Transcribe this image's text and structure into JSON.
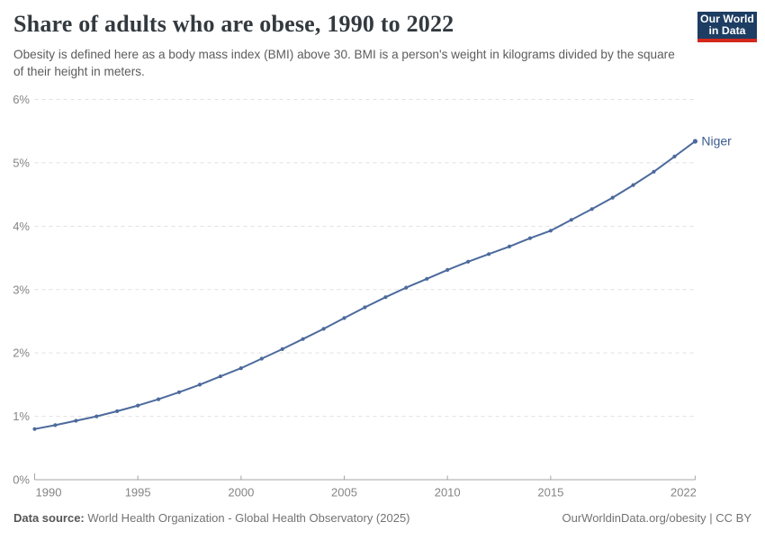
{
  "header": {
    "title": "Share of adults who are obese, 1990 to 2022",
    "subtitle": "Obesity is defined here as a body mass index (BMI) above 30. BMI is a person's weight in kilograms divided by the square of their height in meters.",
    "logo": {
      "line1": "Our World",
      "line2": "in Data"
    }
  },
  "chart_data": {
    "type": "line",
    "title": "Share of adults who are obese, 1990 to 2022",
    "xlabel": "",
    "ylabel": "",
    "xlim": [
      1990,
      2022
    ],
    "ylim": [
      0,
      6
    ],
    "grid": "horizontal-dashed",
    "legend_position": "end-of-line-label",
    "x_ticks": [
      {
        "v": 1990,
        "label": "1990"
      },
      {
        "v": 1995,
        "label": "1995"
      },
      {
        "v": 2000,
        "label": "2000"
      },
      {
        "v": 2005,
        "label": "2005"
      },
      {
        "v": 2010,
        "label": "2010"
      },
      {
        "v": 2015,
        "label": "2015"
      },
      {
        "v": 2022,
        "label": "2022"
      }
    ],
    "y_ticks": [
      {
        "v": 0,
        "label": "0%"
      },
      {
        "v": 1,
        "label": "1%"
      },
      {
        "v": 2,
        "label": "2%"
      },
      {
        "v": 3,
        "label": "3%"
      },
      {
        "v": 4,
        "label": "4%"
      },
      {
        "v": 5,
        "label": "5%"
      },
      {
        "v": 6,
        "label": "6%"
      }
    ],
    "series": [
      {
        "name": "Niger",
        "unit": "%",
        "x": [
          1990,
          1991,
          1992,
          1993,
          1994,
          1995,
          1996,
          1997,
          1998,
          1999,
          2000,
          2001,
          2002,
          2003,
          2004,
          2005,
          2006,
          2007,
          2008,
          2009,
          2010,
          2011,
          2012,
          2013,
          2014,
          2015,
          2016,
          2017,
          2018,
          2019,
          2020,
          2021,
          2022
        ],
        "values": [
          0.8,
          0.86,
          0.93,
          1.0,
          1.08,
          1.17,
          1.27,
          1.38,
          1.5,
          1.63,
          1.76,
          1.91,
          2.06,
          2.22,
          2.38,
          2.55,
          2.72,
          2.88,
          3.03,
          3.17,
          3.31,
          3.44,
          3.56,
          3.68,
          3.81,
          3.93,
          4.1,
          4.27,
          4.45,
          4.65,
          4.86,
          5.1,
          5.34
        ]
      }
    ]
  },
  "colors": {
    "line": "#4c6a9c",
    "entity_label": "#3d5c8f",
    "grid": "#e0e0e0",
    "axis": "#a5a5a5",
    "tick_label": "#858585",
    "logo_bg": "#1d3d63",
    "logo_accent": "#d4281c"
  },
  "footer": {
    "source_label": "Data source:",
    "source_text": " World Health Organization - Global Health Observatory (2025)",
    "attribution": "OurWorldinData.org/obesity | CC BY"
  }
}
